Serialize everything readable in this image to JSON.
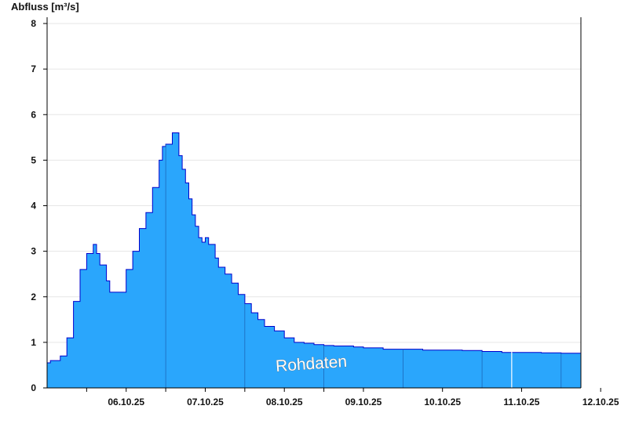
{
  "chart_data": {
    "type": "area",
    "ylabel": "Abfluss [m³/s]",
    "ylim": [
      0,
      8
    ],
    "yticks": [
      "0",
      "1",
      "2",
      "3",
      "4",
      "5",
      "6",
      "7",
      "8"
    ],
    "xlim": [
      "2025-10-05T12:00",
      "2025-10-12T06:00"
    ],
    "xticks": [
      {
        "label": "06.10.25",
        "at": "2025-10-06T12:00"
      },
      {
        "label": "07.10.25",
        "at": "2025-10-07T12:00"
      },
      {
        "label": "08.10.25",
        "at": "2025-10-08T12:00"
      },
      {
        "label": "09.10.25",
        "at": "2025-10-09T12:00"
      },
      {
        "label": "10.10.25",
        "at": "2025-10-10T12:00"
      },
      {
        "label": "11.10.25",
        "at": "2025-10-11T12:00"
      },
      {
        "label": "12.10.25",
        "at": "2025-10-12T12:00"
      }
    ],
    "watermark": "Rohdaten",
    "grid": true,
    "colors": {
      "fill": "#2aa6fc",
      "line": "#0000cc",
      "grid": "#e6e6e6"
    },
    "series": [
      {
        "x": [
          "2025-10-05T12:00",
          "2025-10-05T13:00",
          "2025-10-05T16:00",
          "2025-10-05T18:00",
          "2025-10-05T20:00",
          "2025-10-05T22:00",
          "2025-10-06T00:00",
          "2025-10-06T02:00",
          "2025-10-06T03:00",
          "2025-10-06T04:00",
          "2025-10-06T06:00",
          "2025-10-06T07:00",
          "2025-10-06T09:00",
          "2025-10-06T12:00",
          "2025-10-06T14:00",
          "2025-10-06T16:00",
          "2025-10-06T18:00",
          "2025-10-06T20:00",
          "2025-10-06T22:00",
          "2025-10-06T23:00",
          "2025-10-07T00:00",
          "2025-10-07T02:00",
          "2025-10-07T04:00",
          "2025-10-07T05:00",
          "2025-10-07T06:00",
          "2025-10-07T07:00",
          "2025-10-07T08:00",
          "2025-10-07T09:00",
          "2025-10-07T10:00",
          "2025-10-07T11:00",
          "2025-10-07T12:00",
          "2025-10-07T13:00",
          "2025-10-07T15:00",
          "2025-10-07T16:00",
          "2025-10-07T18:00",
          "2025-10-07T20:00",
          "2025-10-07T22:00",
          "2025-10-08T00:00",
          "2025-10-08T02:00",
          "2025-10-08T04:00",
          "2025-10-08T06:00",
          "2025-10-08T09:00",
          "2025-10-08T12:00",
          "2025-10-08T15:00",
          "2025-10-08T18:00",
          "2025-10-08T21:00",
          "2025-10-09T00:00",
          "2025-10-09T03:00",
          "2025-10-09T06:00",
          "2025-10-09T09:00",
          "2025-10-09T12:00",
          "2025-10-09T18:00",
          "2025-10-10T00:00",
          "2025-10-10T06:00",
          "2025-10-10T12:00",
          "2025-10-10T18:00",
          "2025-10-11T00:00",
          "2025-10-11T06:00",
          "2025-10-11T12:00",
          "2025-10-11T18:00",
          "2025-10-12T00:00",
          "2025-10-12T06:00"
        ],
        "values": [
          0.55,
          0.6,
          0.7,
          1.1,
          1.9,
          2.6,
          2.95,
          3.15,
          2.95,
          2.7,
          2.35,
          2.1,
          2.1,
          2.6,
          3.0,
          3.5,
          3.85,
          4.4,
          5.0,
          5.3,
          5.35,
          5.6,
          5.1,
          4.8,
          4.5,
          4.15,
          3.8,
          3.55,
          3.3,
          3.2,
          3.3,
          3.15,
          2.85,
          2.65,
          2.5,
          2.3,
          2.05,
          1.85,
          1.65,
          1.5,
          1.35,
          1.25,
          1.1,
          1.0,
          0.98,
          0.95,
          0.93,
          0.92,
          0.92,
          0.9,
          0.88,
          0.85,
          0.85,
          0.83,
          0.83,
          0.82,
          0.8,
          0.78,
          0.78,
          0.77,
          0.76,
          0.72
        ]
      }
    ]
  }
}
